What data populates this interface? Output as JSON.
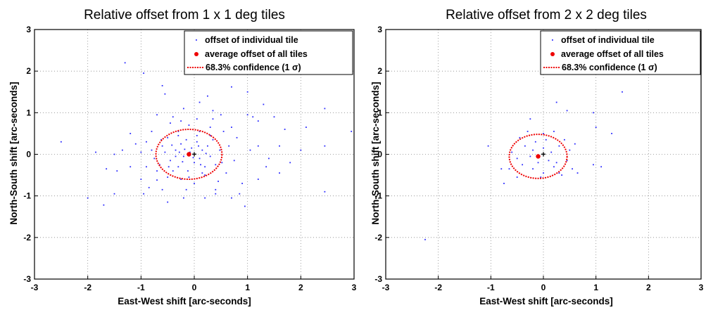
{
  "chart_data": [
    {
      "type": "scatter",
      "title": "Relative offset from 1 x 1 deg tiles",
      "xlabel": "East-West shift [arc-seconds]",
      "ylabel": "North-South shift [arc-seconds]",
      "xlim": [
        -3,
        3
      ],
      "ylim": [
        -3,
        3
      ],
      "xticks": [
        "-3",
        "-2",
        "-1",
        "0",
        "1",
        "2",
        "3"
      ],
      "yticks": [
        "-3",
        "-2",
        "-1",
        "0",
        "1",
        "2",
        "3"
      ],
      "grid": "dotted",
      "legend_position": "top-right",
      "legend": [
        "offset of individual tile",
        "average offset of all tiles",
        "68.3% confidence (1 σ)"
      ],
      "colors": {
        "points": "#2b2bff",
        "average": "#ee0000",
        "ellipse": "#ee0000"
      },
      "average": {
        "x": -0.1,
        "y": 0.0
      },
      "ellipse": {
        "cx": -0.1,
        "cy": 0.0,
        "rx": 0.62,
        "ry": 0.6
      },
      "points": [
        [
          -2.0,
          -1.05
        ],
        [
          -1.7,
          -1.22
        ],
        [
          -1.3,
          2.2
        ],
        [
          -0.95,
          1.95
        ],
        [
          -0.6,
          1.65
        ],
        [
          -0.55,
          1.45
        ],
        [
          0.2,
          2.0
        ],
        [
          0.25,
          1.4
        ],
        [
          0.35,
          1.05
        ],
        [
          0.7,
          1.62
        ],
        [
          1.0,
          1.5
        ],
        [
          1.0,
          0.95
        ],
        [
          1.1,
          0.9
        ],
        [
          1.2,
          0.8
        ],
        [
          1.3,
          1.2
        ],
        [
          1.5,
          0.9
        ],
        [
          1.7,
          0.6
        ],
        [
          2.1,
          0.65
        ],
        [
          2.45,
          1.1
        ],
        [
          2.95,
          0.55
        ],
        [
          2.45,
          0.2
        ],
        [
          2.0,
          0.1
        ],
        [
          1.6,
          -0.45
        ],
        [
          1.2,
          -0.6
        ],
        [
          0.9,
          -0.7
        ],
        [
          0.95,
          -1.25
        ],
        [
          0.7,
          -1.05
        ],
        [
          0.4,
          -0.95
        ],
        [
          0.2,
          -1.05
        ],
        [
          -0.2,
          -1.05
        ],
        [
          -0.5,
          -1.15
        ],
        [
          -0.85,
          -0.8
        ],
        [
          -1.0,
          -0.6
        ],
        [
          -1.2,
          -0.3
        ],
        [
          -1.5,
          -0.95
        ],
        [
          -1.65,
          -0.35
        ],
        [
          -1.1,
          0.25
        ],
        [
          -1.2,
          0.5
        ],
        [
          -0.9,
          0.3
        ],
        [
          -0.8,
          0.55
        ],
        [
          -0.7,
          0.95
        ],
        [
          -0.4,
          0.9
        ],
        [
          -0.2,
          1.1
        ],
        [
          0.1,
          1.25
        ],
        [
          0.5,
          0.95
        ],
        [
          0.8,
          0.4
        ],
        [
          1.2,
          0.2
        ],
        [
          1.4,
          -0.1
        ],
        [
          1.8,
          -0.2
        ],
        [
          2.45,
          -0.9
        ],
        [
          1.6,
          0.2
        ],
        [
          -2.5,
          0.3
        ],
        [
          -1.85,
          0.05
        ],
        [
          -1.5,
          0.0
        ],
        [
          -0.45,
          0.75
        ],
        [
          -0.3,
          0.45
        ],
        [
          -0.1,
          0.7
        ],
        [
          0.1,
          0.55
        ],
        [
          0.3,
          0.65
        ],
        [
          0.55,
          0.55
        ],
        [
          0.65,
          0.2
        ],
        [
          0.75,
          -0.15
        ],
        [
          0.6,
          -0.45
        ],
        [
          0.45,
          -0.65
        ],
        [
          0.2,
          -0.5
        ],
        [
          0.0,
          -0.7
        ],
        [
          -0.25,
          -0.6
        ],
        [
          -0.5,
          -0.55
        ],
        [
          -0.7,
          -0.4
        ],
        [
          -0.75,
          -0.1
        ],
        [
          -0.6,
          0.2
        ],
        [
          -0.5,
          0.4
        ],
        [
          -0.45,
          -0.15
        ],
        [
          -0.35,
          0.1
        ],
        [
          -0.3,
          -0.3
        ],
        [
          -0.25,
          0.25
        ],
        [
          -0.2,
          -0.05
        ],
        [
          -0.15,
          0.35
        ],
        [
          -0.12,
          -0.4
        ],
        [
          -0.05,
          0.15
        ],
        [
          0.0,
          -0.2
        ],
        [
          0.05,
          0.3
        ],
        [
          0.1,
          -0.1
        ],
        [
          0.15,
          0.1
        ],
        [
          0.2,
          -0.3
        ],
        [
          0.25,
          0.2
        ],
        [
          0.3,
          -0.05
        ],
        [
          0.35,
          0.35
        ],
        [
          0.4,
          -0.25
        ],
        [
          -0.55,
          0.05
        ],
        [
          -0.65,
          -0.25
        ],
        [
          -0.4,
          -0.4
        ],
        [
          -0.3,
          0.55
        ],
        [
          -0.1,
          -0.55
        ],
        [
          0.05,
          0.45
        ],
        [
          0.15,
          -0.45
        ],
        [
          0.3,
          0.45
        ],
        [
          -0.8,
          0.1
        ],
        [
          -0.9,
          -0.3
        ],
        [
          -1.0,
          0.05
        ],
        [
          -0.35,
          -0.05
        ],
        [
          -0.28,
          0.05
        ],
        [
          -0.22,
          -0.18
        ],
        [
          -0.18,
          0.12
        ],
        [
          -0.08,
          0.05
        ],
        [
          -0.02,
          -0.08
        ],
        [
          0.08,
          0.2
        ],
        [
          0.12,
          -0.25
        ],
        [
          0.22,
          0.02
        ],
        [
          -0.42,
          0.22
        ],
        [
          -0.48,
          -0.3
        ],
        [
          -0.62,
          0.35
        ],
        [
          0.48,
          0.1
        ],
        [
          0.52,
          -0.2
        ],
        [
          -0.7,
          -0.62
        ],
        [
          0.7,
          0.65
        ],
        [
          1.05,
          0.1
        ],
        [
          1.35,
          -0.3
        ],
        [
          -1.35,
          0.1
        ],
        [
          -1.45,
          -0.4
        ],
        [
          0.85,
          -0.95
        ],
        [
          -0.95,
          -0.95
        ],
        [
          -0.15,
          -0.85
        ],
        [
          0.4,
          -0.85
        ],
        [
          -0.6,
          -0.85
        ],
        [
          0.05,
          0.85
        ],
        [
          -0.25,
          0.8
        ],
        [
          0.35,
          0.85
        ]
      ]
    },
    {
      "type": "scatter",
      "title": "Relative offset from 2 x 2 deg tiles",
      "xlabel": "East-West shift [arc-seconds]",
      "ylabel": "North-South shift [arc-seconds]",
      "xlim": [
        -3,
        3
      ],
      "ylim": [
        -3,
        3
      ],
      "xticks": [
        "-3",
        "-2",
        "-1",
        "0",
        "1",
        "2",
        "3"
      ],
      "yticks": [
        "-3",
        "-2",
        "-1",
        "0",
        "1",
        "2",
        "3"
      ],
      "grid": "dotted",
      "legend_position": "top-right",
      "legend": [
        "offset of individual tile",
        "average offset of all tiles",
        "68.3% confidence (1 σ)"
      ],
      "colors": {
        "points": "#2b2bff",
        "average": "#ee0000",
        "ellipse": "#ee0000"
      },
      "average": {
        "x": -0.1,
        "y": -0.05
      },
      "ellipse": {
        "cx": -0.1,
        "cy": -0.05,
        "rx": 0.55,
        "ry": 0.53
      },
      "points": [
        [
          -2.25,
          -2.05
        ],
        [
          -1.05,
          0.2
        ],
        [
          -0.25,
          0.85
        ],
        [
          0.25,
          1.25
        ],
        [
          0.45,
          1.05
        ],
        [
          1.5,
          1.5
        ],
        [
          0.95,
          1.0
        ],
        [
          1.3,
          0.5
        ],
        [
          1.0,
          0.65
        ],
        [
          0.95,
          -0.25
        ],
        [
          1.1,
          -0.3
        ],
        [
          0.65,
          -0.45
        ],
        [
          0.3,
          -0.45
        ],
        [
          -0.05,
          -0.55
        ],
        [
          -0.5,
          -0.55
        ],
        [
          -0.75,
          -0.7
        ],
        [
          -0.8,
          -0.35
        ],
        [
          -0.6,
          0.05
        ],
        [
          -0.45,
          0.4
        ],
        [
          -0.3,
          0.55
        ],
        [
          0.0,
          0.5
        ],
        [
          0.2,
          0.55
        ],
        [
          0.4,
          0.35
        ],
        [
          0.5,
          0.1
        ],
        [
          0.45,
          -0.15
        ],
        [
          0.2,
          -0.3
        ],
        [
          -0.2,
          -0.35
        ],
        [
          -0.4,
          -0.25
        ],
        [
          -0.35,
          0.2
        ],
        [
          -0.2,
          0.1
        ],
        [
          0.0,
          0.15
        ],
        [
          0.15,
          0.05
        ],
        [
          0.1,
          -0.15
        ],
        [
          -0.1,
          -0.2
        ],
        [
          -0.25,
          -0.05
        ],
        [
          0.3,
          0.2
        ],
        [
          0.25,
          -0.2
        ],
        [
          -0.5,
          -0.1
        ],
        [
          -0.15,
          0.3
        ],
        [
          0.05,
          0.35
        ],
        [
          0.55,
          -0.35
        ],
        [
          -0.65,
          -0.35
        ],
        [
          0.35,
          -0.5
        ],
        [
          0.6,
          0.25
        ],
        [
          0.0,
          -0.45
        ]
      ]
    }
  ]
}
